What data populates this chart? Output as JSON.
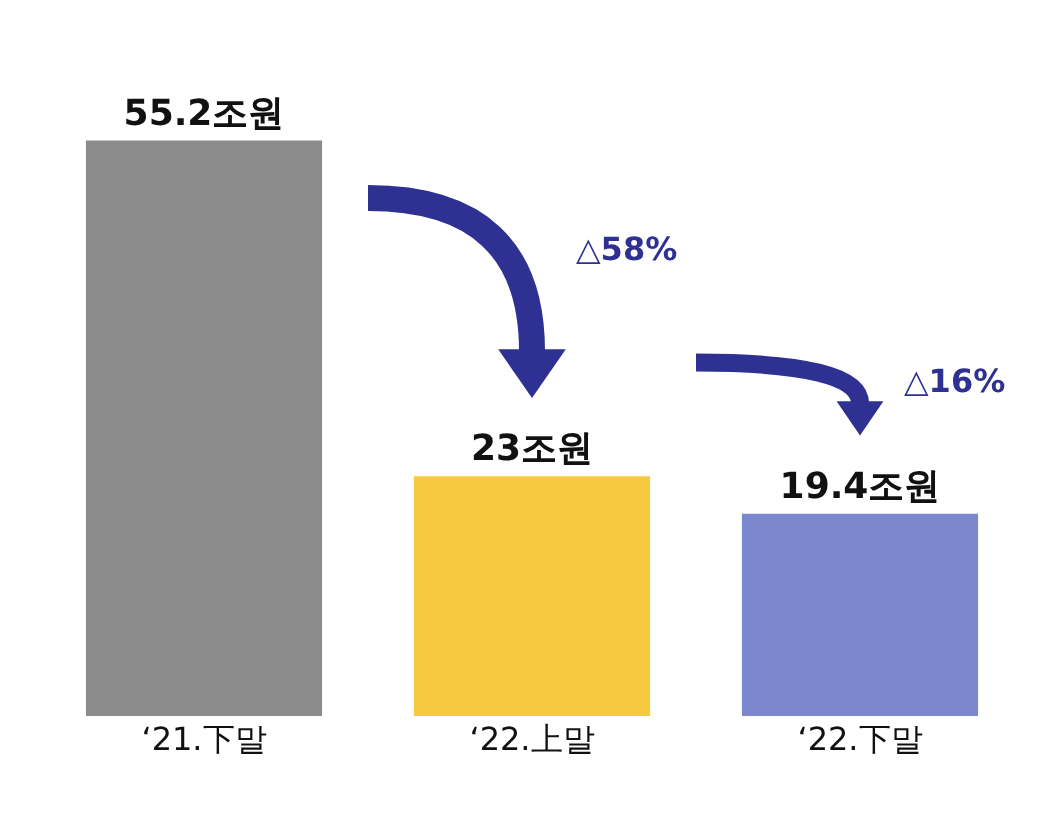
{
  "chart_data": {
    "type": "bar",
    "categories": [
      "‘21.下말",
      "‘22.上말",
      "‘22.下말"
    ],
    "values": [
      55.2,
      23,
      19.4
    ],
    "colors": [
      "#8c8c8c",
      "#f7c93e",
      "#7b88cf"
    ],
    "value_labels": [
      "55.2조원",
      "23조원",
      "19.4조원"
    ],
    "annotations": [
      "△58%",
      "△16%"
    ]
  }
}
